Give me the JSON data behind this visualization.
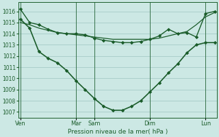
{
  "bg_color": "#cce8e4",
  "grid_color": "#aacfcb",
  "line_color": "#1a5c2a",
  "xlabel": "Pression niveau de la mer( hPa )",
  "ylim": [
    1006.5,
    1016.8
  ],
  "yticks": [
    1007,
    1008,
    1009,
    1010,
    1011,
    1012,
    1013,
    1014,
    1015,
    1016
  ],
  "xtick_labels": [
    "Ven",
    "Mar",
    "Sam",
    "Dim",
    "Lun"
  ],
  "xtick_positions": [
    0,
    6,
    8,
    14,
    20
  ],
  "vline_positions": [
    0,
    6,
    8,
    14,
    20
  ],
  "xlim": [
    -0.2,
    21.2
  ],
  "line1_x": [
    0,
    1,
    2,
    3,
    4,
    5,
    6,
    7,
    8,
    9,
    10,
    11,
    12,
    13,
    14,
    15,
    16,
    17,
    18,
    19,
    20,
    21
  ],
  "line1_y": [
    1015.0,
    1014.8,
    1014.5,
    1014.3,
    1014.1,
    1014.0,
    1013.9,
    1013.8,
    1013.7,
    1013.6,
    1013.5,
    1013.5,
    1013.5,
    1013.5,
    1013.5,
    1013.6,
    1013.8,
    1014.0,
    1014.2,
    1014.8,
    1015.5,
    1015.9
  ],
  "line2_x": [
    0,
    1,
    2,
    3,
    4,
    5,
    6,
    7,
    8,
    9,
    10,
    11,
    12,
    13,
    14,
    15,
    16,
    17,
    18,
    19,
    20,
    21
  ],
  "line2_y": [
    1016.2,
    1015.0,
    1014.8,
    1014.4,
    1014.1,
    1014.0,
    1014.0,
    1013.9,
    1013.6,
    1013.4,
    1013.3,
    1013.2,
    1013.2,
    1013.3,
    1013.5,
    1013.8,
    1014.4,
    1014.0,
    1014.1,
    1013.7,
    1015.8,
    1016.0
  ],
  "line3_x": [
    0,
    1,
    2,
    3,
    4,
    5,
    6,
    7,
    8,
    9,
    10,
    11,
    12,
    13,
    14,
    15,
    16,
    17,
    18,
    19,
    20,
    21
  ],
  "line3_y": [
    1015.3,
    1014.5,
    1012.4,
    1011.8,
    1011.4,
    1010.7,
    1009.8,
    1009.0,
    1008.2,
    1007.5,
    1007.15,
    1007.15,
    1007.5,
    1008.0,
    1008.8,
    1009.6,
    1010.5,
    1011.3,
    1012.3,
    1013.0,
    1013.2,
    1013.2
  ]
}
